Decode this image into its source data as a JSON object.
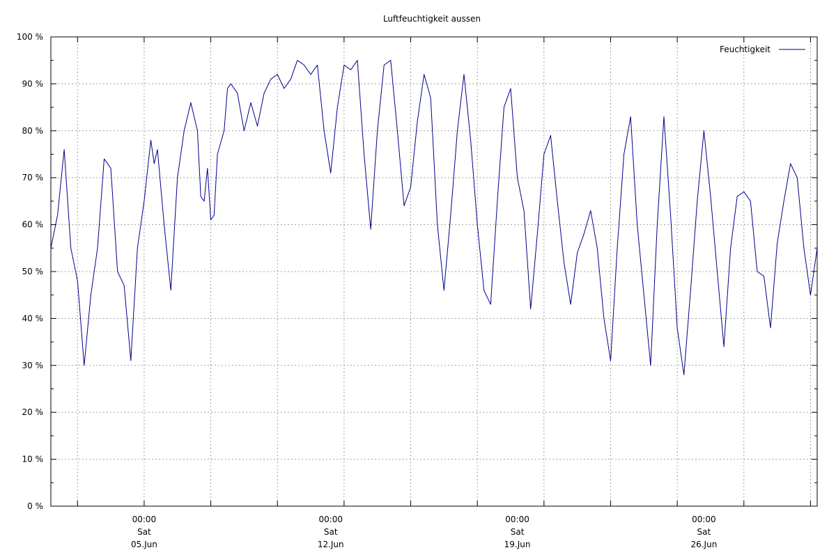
{
  "chart_data": {
    "type": "line",
    "title": "Luftfeuchtigkeit aussen",
    "xlabel": "",
    "ylabel": "",
    "y_unit": "%",
    "ylim": [
      0,
      100
    ],
    "yticks": [
      "0 %",
      "10 %",
      "20 %",
      "30 %",
      "40 %",
      "50 %",
      "60 %",
      "70 %",
      "80 %",
      "90 %",
      "100 %"
    ],
    "xlim": [
      "2021-06-01T12:00",
      "2021-06-30T06:00"
    ],
    "x_ticks": [
      {
        "x": "2021-06-05T00:00",
        "time": "00:00",
        "weekday": "Sat",
        "date": "05.Jun"
      },
      {
        "x": "2021-06-12T00:00",
        "time": "00:00",
        "weekday": "Sat",
        "date": "12.Jun"
      },
      {
        "x": "2021-06-19T00:00",
        "time": "00:00",
        "weekday": "Sat",
        "date": "19.Jun"
      },
      {
        "x": "2021-06-26T00:00",
        "time": "00:00",
        "weekday": "Sat",
        "date": "26.Jun"
      }
    ],
    "grid": true,
    "legend": "top-right",
    "colors": {
      "line": "#00008b",
      "grid": "#a0a0a0"
    },
    "series": [
      {
        "name": "Feuchtigkeit",
        "points": [
          [
            "2021-06-01T12:00",
            55
          ],
          [
            "2021-06-01T18:00",
            62
          ],
          [
            "2021-06-02T00:00",
            76
          ],
          [
            "2021-06-02T06:00",
            55
          ],
          [
            "2021-06-02T12:00",
            48
          ],
          [
            "2021-06-02T18:00",
            30
          ],
          [
            "2021-06-03T00:00",
            45
          ],
          [
            "2021-06-03T06:00",
            55
          ],
          [
            "2021-06-03T12:00",
            74
          ],
          [
            "2021-06-03T18:00",
            72
          ],
          [
            "2021-06-04T00:00",
            50
          ],
          [
            "2021-06-04T06:00",
            47
          ],
          [
            "2021-06-04T12:00",
            31
          ],
          [
            "2021-06-04T18:00",
            55
          ],
          [
            "2021-06-05T00:00",
            65
          ],
          [
            "2021-06-05T06:00",
            78
          ],
          [
            "2021-06-05T09:00",
            73
          ],
          [
            "2021-06-05T12:00",
            76
          ],
          [
            "2021-06-05T18:00",
            60
          ],
          [
            "2021-06-06T00:00",
            46
          ],
          [
            "2021-06-06T06:00",
            70
          ],
          [
            "2021-06-06T12:00",
            80
          ],
          [
            "2021-06-06T18:00",
            86
          ],
          [
            "2021-06-07T00:00",
            80
          ],
          [
            "2021-06-07T03:00",
            66
          ],
          [
            "2021-06-07T06:00",
            65
          ],
          [
            "2021-06-07T09:00",
            72
          ],
          [
            "2021-06-07T12:00",
            61
          ],
          [
            "2021-06-07T15:00",
            62
          ],
          [
            "2021-06-07T18:00",
            75
          ],
          [
            "2021-06-08T00:00",
            80
          ],
          [
            "2021-06-08T03:00",
            89
          ],
          [
            "2021-06-08T06:00",
            90
          ],
          [
            "2021-06-08T12:00",
            88
          ],
          [
            "2021-06-08T18:00",
            80
          ],
          [
            "2021-06-09T00:00",
            86
          ],
          [
            "2021-06-09T06:00",
            81
          ],
          [
            "2021-06-09T12:00",
            88
          ],
          [
            "2021-06-09T18:00",
            91
          ],
          [
            "2021-06-10T00:00",
            92
          ],
          [
            "2021-06-10T06:00",
            89
          ],
          [
            "2021-06-10T12:00",
            91
          ],
          [
            "2021-06-10T18:00",
            95
          ],
          [
            "2021-06-11T00:00",
            94
          ],
          [
            "2021-06-11T06:00",
            92
          ],
          [
            "2021-06-11T12:00",
            94
          ],
          [
            "2021-06-11T18:00",
            80
          ],
          [
            "2021-06-12T00:00",
            71
          ],
          [
            "2021-06-12T06:00",
            85
          ],
          [
            "2021-06-12T12:00",
            94
          ],
          [
            "2021-06-12T18:00",
            93
          ],
          [
            "2021-06-13T00:00",
            95
          ],
          [
            "2021-06-13T06:00",
            75
          ],
          [
            "2021-06-13T12:00",
            59
          ],
          [
            "2021-06-13T18:00",
            80
          ],
          [
            "2021-06-14T00:00",
            94
          ],
          [
            "2021-06-14T06:00",
            95
          ],
          [
            "2021-06-14T12:00",
            80
          ],
          [
            "2021-06-14T18:00",
            64
          ],
          [
            "2021-06-15T00:00",
            68
          ],
          [
            "2021-06-15T06:00",
            82
          ],
          [
            "2021-06-15T12:00",
            92
          ],
          [
            "2021-06-15T18:00",
            87
          ],
          [
            "2021-06-16T00:00",
            60
          ],
          [
            "2021-06-16T06:00",
            46
          ],
          [
            "2021-06-16T12:00",
            62
          ],
          [
            "2021-06-16T18:00",
            80
          ],
          [
            "2021-06-17T00:00",
            92
          ],
          [
            "2021-06-17T06:00",
            78
          ],
          [
            "2021-06-17T12:00",
            60
          ],
          [
            "2021-06-17T18:00",
            46
          ],
          [
            "2021-06-18T00:00",
            43
          ],
          [
            "2021-06-18T06:00",
            65
          ],
          [
            "2021-06-18T12:00",
            85
          ],
          [
            "2021-06-18T18:00",
            89
          ],
          [
            "2021-06-19T00:00",
            70
          ],
          [
            "2021-06-19T06:00",
            63
          ],
          [
            "2021-06-19T12:00",
            42
          ],
          [
            "2021-06-19T18:00",
            58
          ],
          [
            "2021-06-20T00:00",
            75
          ],
          [
            "2021-06-20T06:00",
            79
          ],
          [
            "2021-06-20T12:00",
            65
          ],
          [
            "2021-06-20T18:00",
            52
          ],
          [
            "2021-06-21T00:00",
            43
          ],
          [
            "2021-06-21T06:00",
            54
          ],
          [
            "2021-06-21T12:00",
            58
          ],
          [
            "2021-06-21T18:00",
            63
          ],
          [
            "2021-06-22T00:00",
            55
          ],
          [
            "2021-06-22T06:00",
            40
          ],
          [
            "2021-06-22T12:00",
            31
          ],
          [
            "2021-06-22T18:00",
            55
          ],
          [
            "2021-06-23T00:00",
            75
          ],
          [
            "2021-06-23T06:00",
            83
          ],
          [
            "2021-06-23T12:00",
            60
          ],
          [
            "2021-06-23T18:00",
            45
          ],
          [
            "2021-06-24T00:00",
            30
          ],
          [
            "2021-06-24T06:00",
            60
          ],
          [
            "2021-06-24T12:00",
            83
          ],
          [
            "2021-06-24T18:00",
            62
          ],
          [
            "2021-06-25T00:00",
            38
          ],
          [
            "2021-06-25T06:00",
            28
          ],
          [
            "2021-06-25T12:00",
            46
          ],
          [
            "2021-06-25T18:00",
            65
          ],
          [
            "2021-06-26T00:00",
            80
          ],
          [
            "2021-06-26T06:00",
            66
          ],
          [
            "2021-06-26T12:00",
            50
          ],
          [
            "2021-06-26T18:00",
            34
          ],
          [
            "2021-06-27T00:00",
            55
          ],
          [
            "2021-06-27T06:00",
            66
          ],
          [
            "2021-06-27T12:00",
            67
          ],
          [
            "2021-06-27T18:00",
            65
          ],
          [
            "2021-06-28T00:00",
            50
          ],
          [
            "2021-06-28T06:00",
            49
          ],
          [
            "2021-06-28T12:00",
            38
          ],
          [
            "2021-06-28T18:00",
            56
          ],
          [
            "2021-06-29T00:00",
            65
          ],
          [
            "2021-06-29T06:00",
            73
          ],
          [
            "2021-06-29T12:00",
            70
          ],
          [
            "2021-06-29T18:00",
            55
          ],
          [
            "2021-06-30T00:00",
            45
          ],
          [
            "2021-06-30T06:00",
            55
          ]
        ]
      }
    ]
  }
}
